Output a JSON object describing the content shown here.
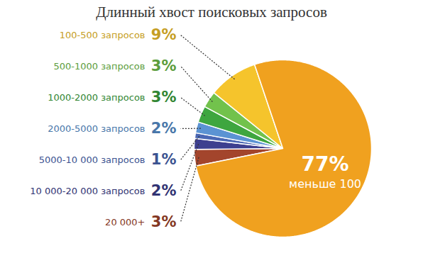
{
  "chart_data": {
    "type": "pie",
    "title": "Длинный хвост поисковых запросов",
    "categories": [
      "20 000+",
      "10 000-20 000 запросов",
      "5000-10 000 запросов",
      "2000-5000 запросов",
      "1000-2000 запросов",
      "500-1000 запросов",
      "100-500 запросов",
      "меньше 100"
    ],
    "values": [
      3,
      2,
      1,
      2,
      3,
      3,
      9,
      77
    ],
    "value_labels": [
      "3%",
      "2%",
      "1%",
      "2%",
      "3%",
      "3%",
      "9%",
      "77%"
    ],
    "colors": [
      "#a3452c",
      "#3d3f8f",
      "#4a67b4",
      "#5b93d3",
      "#3ea63f",
      "#72c24c",
      "#f5c42c",
      "#f0a11f"
    ],
    "data_labels": true
  }
}
